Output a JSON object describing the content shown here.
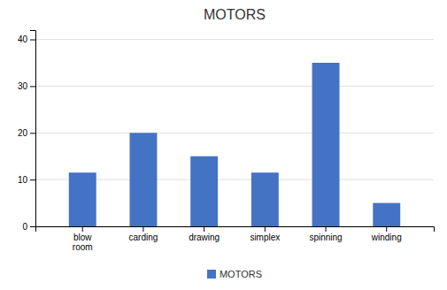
{
  "chart_data": {
    "type": "bar",
    "title": "MOTORS",
    "categories": [
      "blow\nroom",
      "carding",
      "drawing",
      "simplex",
      "spinning",
      "winding"
    ],
    "series": [
      {
        "name": "MOTORS",
        "color": "#4472C4",
        "values": [
          11.5,
          20,
          15,
          11.5,
          35,
          5
        ]
      }
    ],
    "ylim": [
      0,
      42
    ],
    "yticks": [
      0,
      10,
      20,
      30,
      40
    ],
    "grid": true,
    "legend": "bottom"
  }
}
